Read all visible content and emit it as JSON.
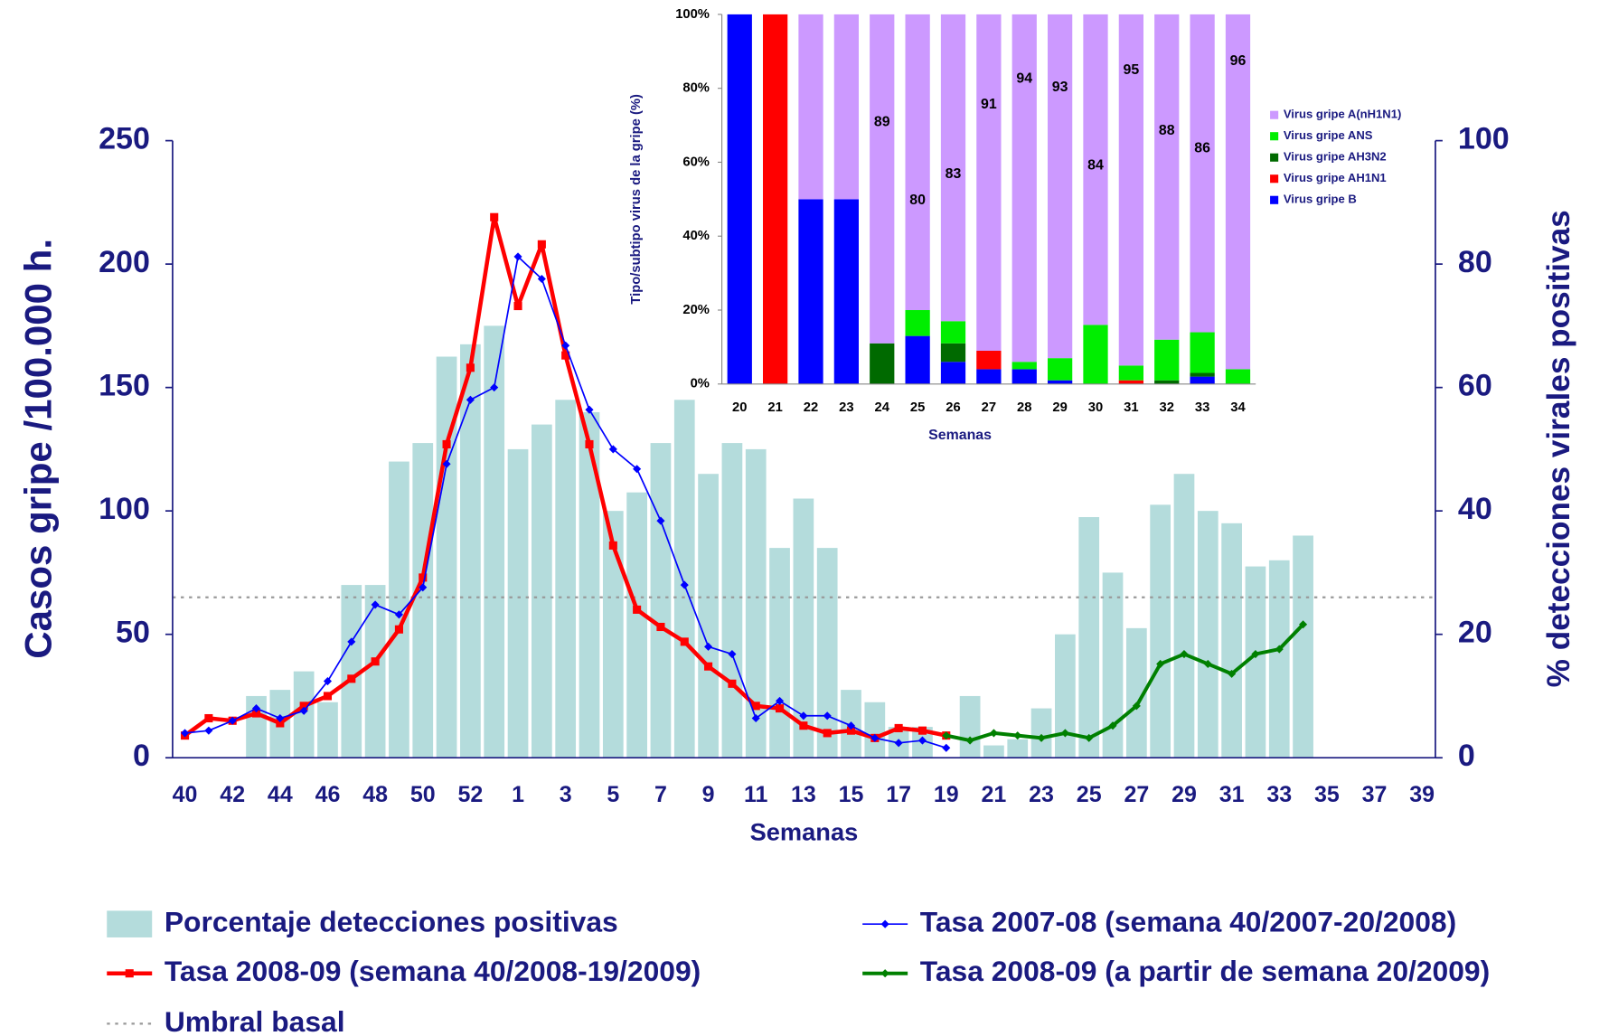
{
  "chart_data": [
    {
      "type": "combo",
      "ylabel": "Casos gripe /100.000 h.",
      "y2label": "% detecciones virales positivas",
      "xlabel": "Semanas",
      "categories": [
        "40",
        null,
        "42",
        null,
        "44",
        null,
        "46",
        null,
        "48",
        null,
        "50",
        null,
        "52",
        null,
        "1",
        null,
        "3",
        null,
        "5",
        null,
        "7",
        null,
        "9",
        null,
        "11",
        null,
        "13",
        null,
        "15",
        null,
        "17",
        null,
        "19",
        null,
        "21",
        null,
        "23",
        null,
        "25",
        null,
        "27",
        null,
        "29",
        null,
        "31",
        null,
        "33",
        null,
        "35",
        null,
        "37",
        null,
        "39"
      ],
      "ylim": [
        0,
        250
      ],
      "yticks": [
        0,
        50,
        100,
        150,
        200,
        250
      ],
      "y2lim": [
        0,
        100
      ],
      "y2ticks": [
        0,
        20,
        40,
        60,
        80,
        100
      ],
      "series": [
        {
          "name": "Porcentaje detecciones positivas",
          "type": "bar",
          "axis": "y2",
          "color": "#b4dcdc",
          "values": [
            null,
            null,
            null,
            10,
            11,
            14,
            9,
            28,
            28,
            48,
            51,
            65,
            67,
            70,
            50,
            54,
            58,
            56,
            40,
            43,
            51,
            58,
            46,
            51,
            50,
            34,
            42,
            34,
            11,
            9,
            5,
            5,
            null,
            10,
            2,
            3,
            8,
            20,
            39,
            30,
            21,
            41,
            46,
            40,
            38,
            31,
            32,
            36,
            null,
            null,
            null,
            null,
            null
          ]
        },
        {
          "name": "Tasa 2008-09 (semana 40/2008-19/2009)",
          "type": "line",
          "color": "#ff0000",
          "marker": "square",
          "linewidth": 4,
          "values": [
            9,
            16,
            15,
            18,
            14,
            21,
            25,
            32,
            39,
            52,
            73,
            127,
            158,
            219,
            183,
            208,
            163,
            127,
            86,
            60,
            53,
            47,
            37,
            30,
            21,
            20,
            13,
            10,
            11,
            8,
            12,
            11,
            9,
            null,
            null,
            null,
            null,
            null,
            null,
            null,
            null,
            null,
            null,
            null,
            null,
            null,
            null,
            null,
            null,
            null,
            null,
            null,
            null
          ]
        },
        {
          "name": "Umbral basal",
          "type": "hline",
          "color": "#999999",
          "value": 65
        },
        {
          "name": "Tasa 2007-08 (semana 40/2007-20/2008)",
          "type": "line",
          "color": "#0000ff",
          "marker": "diamond",
          "linewidth": 1.5,
          "values": [
            10,
            11,
            15,
            20,
            16,
            19,
            31,
            47,
            62,
            58,
            69,
            119,
            145,
            150,
            203,
            194,
            167,
            141,
            125,
            117,
            96,
            70,
            45,
            42,
            16,
            23,
            17,
            17,
            13,
            8,
            6,
            7,
            4,
            null,
            null,
            null,
            null,
            null,
            null,
            null,
            null,
            null,
            null,
            null,
            null,
            null,
            null,
            null,
            null,
            null,
            null,
            null,
            null
          ]
        },
        {
          "name": "Tasa 2008-09 (a partir de semana 20/2009)",
          "type": "line",
          "color": "#008000",
          "marker": "diamond",
          "linewidth": 3.5,
          "values": [
            null,
            null,
            null,
            null,
            null,
            null,
            null,
            null,
            null,
            null,
            null,
            null,
            null,
            null,
            null,
            null,
            null,
            null,
            null,
            null,
            null,
            null,
            null,
            null,
            null,
            null,
            null,
            null,
            null,
            null,
            null,
            null,
            9,
            7,
            10,
            9,
            8,
            10,
            8,
            13,
            21,
            38,
            42,
            38,
            34,
            42,
            44,
            54,
            null,
            null,
            null,
            null,
            null
          ]
        }
      ]
    },
    {
      "type": "stacked_bar",
      "ylabel": "Tipo/subtipo virus de la gripe (%)",
      "xlabel": "Semanas",
      "categories": [
        "20",
        "21",
        "22",
        "23",
        "24",
        "25",
        "26",
        "27",
        "28",
        "29",
        "30",
        "31",
        "32",
        "33",
        "34"
      ],
      "ylim": [
        0,
        100
      ],
      "yticks": [
        {
          "value": 0,
          "label": "0%"
        },
        {
          "value": 20,
          "label": "20%"
        },
        {
          "value": 40,
          "label": "40%"
        },
        {
          "value": 60,
          "label": "60%"
        },
        {
          "value": 80,
          "label": "80%"
        },
        {
          "value": 100,
          "label": "100%"
        }
      ],
      "series": [
        {
          "name": "Virus gripe B",
          "color": "#0000ff",
          "values": [
            100,
            0,
            50,
            50,
            0,
            13,
            6,
            4,
            4,
            1,
            0,
            0,
            0,
            2,
            0
          ],
          "value_labels": [
            null,
            null,
            "50",
            "50",
            null,
            null,
            null,
            null,
            null,
            null,
            null,
            null,
            null,
            null,
            null
          ]
        },
        {
          "name": "Virus gripe AH1N1",
          "color": "#ff0000",
          "values": [
            0,
            100,
            0,
            0,
            0,
            0,
            0,
            5,
            0,
            0,
            0,
            1,
            0,
            0,
            0
          ]
        },
        {
          "name": "Virus gripe AH3N2",
          "color": "#006a00",
          "values": [
            0,
            0,
            0,
            0,
            11,
            0,
            5,
            0,
            0,
            0,
            0,
            0,
            1,
            1,
            0
          ]
        },
        {
          "name": "Virus gripe ANS",
          "color": "#00ee00",
          "values": [
            0,
            0,
            0,
            0,
            0,
            7,
            6,
            0,
            2,
            6,
            16,
            4,
            11,
            11,
            4
          ]
        },
        {
          "name": "Virus gripe A(nH1N1)",
          "color": "#cc99ff",
          "values": [
            0,
            0,
            50,
            50,
            89,
            80,
            83,
            91,
            94,
            93,
            84,
            95,
            88,
            86,
            96
          ],
          "value_labels": [
            null,
            null,
            null,
            null,
            "89",
            "80",
            "83",
            "91",
            "94",
            "93",
            "84",
            "95",
            "88",
            "86",
            "96"
          ]
        }
      ]
    }
  ]
}
